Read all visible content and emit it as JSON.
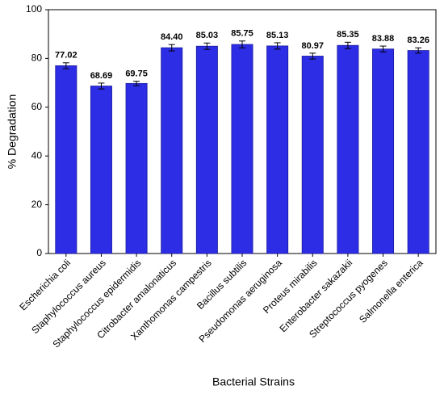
{
  "chart_data": {
    "type": "bar",
    "x_label": "Bacterial Strains",
    "y_label": "% Degradation",
    "categories": [
      "Escherichia coli",
      "Staphylococcus aureus",
      "Staphylococcus epidermidis",
      "Citrobacter amalonaticus",
      "Xanthomonas campestris",
      "Bacillus subtilis",
      "Pseudomonas aeruginosa",
      "Proteus mirabilis",
      "Enterobacter sakazakii",
      "Streptococcus pyogenes",
      "Salmonella enterica"
    ],
    "values": [
      77.02,
      68.69,
      69.75,
      84.4,
      85.03,
      85.75,
      85.13,
      80.97,
      85.35,
      83.88,
      83.26
    ],
    "value_labels": [
      "77.02",
      "68.69",
      "69.75",
      "84.40",
      "85.03",
      "85.75",
      "85.13",
      "80.97",
      "85.35",
      "83.88",
      "83.26"
    ],
    "errors": [
      1.2,
      1.2,
      0.9,
      1.3,
      1.3,
      1.4,
      1.3,
      1.2,
      1.3,
      1.2,
      1.1
    ],
    "color": "#2d2de6",
    "ylim": [
      0,
      100
    ],
    "yticks": [
      0,
      20,
      40,
      60,
      80,
      100
    ]
  }
}
